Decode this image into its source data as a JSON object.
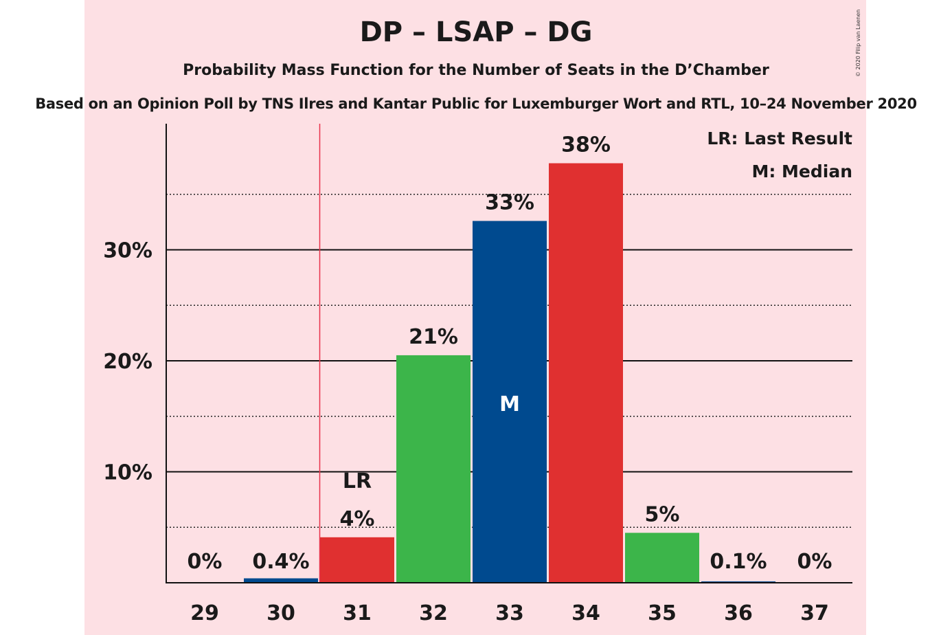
{
  "title": "DP – LSAP – DG",
  "subtitle": "Probability Mass Function for the Number of Seats in the D’Chamber",
  "source": "Based on an Opinion Poll by TNS Ilres and Kantar Public for Luxemburger Wort and RTL, 10–24 November 2020",
  "copyright": "© 2020 Filip van Laenen",
  "legend": {
    "last_result": "LR: Last Result",
    "median": "M: Median"
  },
  "colors": {
    "background": "#fde0e4",
    "red": "#e03030",
    "blue": "#004a8f",
    "green": "#3cb54a",
    "last_result_line": "#e8334a"
  },
  "chart_data": {
    "type": "bar",
    "categories": [
      "29",
      "30",
      "31",
      "32",
      "33",
      "34",
      "35",
      "36",
      "37"
    ],
    "values": [
      0,
      0.4,
      4.1,
      20.5,
      32.6,
      37.8,
      4.5,
      0.1,
      0
    ],
    "data_labels": [
      "0%",
      "0.4%",
      "4%",
      "21%",
      "33%",
      "38%",
      "5%",
      "0.1%",
      "0%"
    ],
    "bar_colors": [
      "red",
      "blue",
      "red",
      "green",
      "blue",
      "red",
      "green",
      "blue",
      "red"
    ],
    "yticks": [
      10,
      20,
      30
    ],
    "ytick_labels": [
      "10%",
      "20%",
      "30%"
    ],
    "ylim": [
      0,
      41.5
    ],
    "minor_grid": [
      5,
      15,
      25,
      35
    ],
    "last_result": {
      "seats": "31",
      "label": "LR"
    },
    "median": {
      "seats": "33",
      "label": "M"
    },
    "legend_position": "top-right"
  }
}
